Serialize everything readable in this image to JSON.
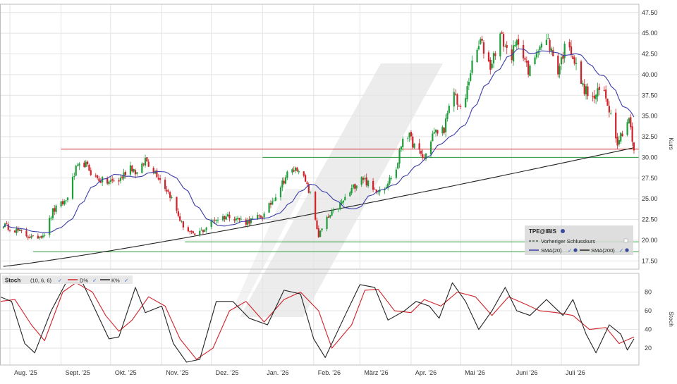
{
  "chart_data": [
    {
      "type": "candlestick",
      "name": "price-panel",
      "title": "",
      "ylabel": "Kurs",
      "ylim": [
        16.5,
        48.5
      ],
      "yticks": [
        17.5,
        20.0,
        22.5,
        25.0,
        27.5,
        30.0,
        32.5,
        35.0,
        37.5,
        40.0,
        42.5,
        45.0,
        47.5
      ],
      "ytick_labels": [
        "17.50",
        "20.00",
        "22.50",
        "25.00",
        "27.50",
        "30.00",
        "32.50",
        "35.00",
        "37.50",
        "40.00",
        "42.50",
        "45.00",
        "47.50"
      ],
      "grid": true,
      "legend": {
        "placement": "bottom-right",
        "title": "TPE@IBIS",
        "entries": [
          "Vorheriger Schlusskurs",
          "SMA(20)",
          "SMA(200)"
        ]
      },
      "colors": {
        "up": "#1e9e3a",
        "down": "#d0222a",
        "sma20": "#3c3ca8",
        "sma200": "#222222",
        "red_line": "#d0222a",
        "green_line": "#2a9a3a"
      },
      "horizontal_lines": [
        {
          "value": 31.0,
          "color": "#d0222a",
          "from": "2025-09-01"
        },
        {
          "value": 30.0,
          "color": "#2a9a3a",
          "from": "2026-01-01"
        },
        {
          "value": 19.8,
          "color": "#2a9a3a",
          "from": "2025-11-15"
        },
        {
          "value": 18.6,
          "color": "#2a9a3a",
          "from": "2025-08-15"
        }
      ],
      "price_path": [
        [
          "2025-07-26",
          22.0
        ],
        [
          "2025-08-05",
          21.2
        ],
        [
          "2025-08-15",
          20.2
        ],
        [
          "2025-08-22",
          20.8
        ],
        [
          "2025-08-27",
          23.5
        ],
        [
          "2025-09-04",
          24.8
        ],
        [
          "2025-09-10",
          28.5
        ],
        [
          "2025-09-15",
          29.3
        ],
        [
          "2025-09-22",
          27.5
        ],
        [
          "2025-09-28",
          27.0
        ],
        [
          "2025-10-06",
          27.2
        ],
        [
          "2025-10-13",
          29.0
        ],
        [
          "2025-10-18",
          27.8
        ],
        [
          "2025-10-22",
          29.8
        ],
        [
          "2025-10-29",
          28.0
        ],
        [
          "2025-11-06",
          25.5
        ],
        [
          "2025-11-13",
          22.0
        ],
        [
          "2025-11-20",
          20.5
        ],
        [
          "2025-11-26",
          21.2
        ],
        [
          "2025-12-03",
          22.5
        ],
        [
          "2025-12-12",
          23.0
        ],
        [
          "2025-12-22",
          22.2
        ],
        [
          "2026-01-02",
          23.0
        ],
        [
          "2026-01-09",
          25.5
        ],
        [
          "2026-01-16",
          28.0
        ],
        [
          "2026-01-23",
          28.8
        ],
        [
          "2026-01-30",
          25.5
        ],
        [
          "2026-02-04",
          20.5
        ],
        [
          "2026-02-09",
          22.5
        ],
        [
          "2026-02-16",
          24.0
        ],
        [
          "2026-02-23",
          25.8
        ],
        [
          "2026-03-02",
          27.8
        ],
        [
          "2026-03-09",
          26.0
        ],
        [
          "2026-03-16",
          26.5
        ],
        [
          "2026-03-23",
          28.5
        ],
        [
          "2026-03-28",
          33.5
        ],
        [
          "2026-04-04",
          31.0
        ],
        [
          "2026-04-09",
          29.8
        ],
        [
          "2026-04-14",
          32.8
        ],
        [
          "2026-04-21",
          33.5
        ],
        [
          "2026-04-27",
          38.0
        ],
        [
          "2026-05-02",
          35.0
        ],
        [
          "2026-05-07",
          40.5
        ],
        [
          "2026-05-13",
          44.0
        ],
        [
          "2026-05-19",
          41.0
        ],
        [
          "2026-05-25",
          44.8
        ],
        [
          "2026-05-31",
          42.0
        ],
        [
          "2026-06-06",
          44.5
        ],
        [
          "2026-06-11",
          40.0
        ],
        [
          "2026-06-17",
          43.5
        ],
        [
          "2026-06-23",
          44.0
        ],
        [
          "2026-06-29",
          40.5
        ],
        [
          "2026-07-05",
          44.5
        ],
        [
          "2026-07-09",
          41.5
        ],
        [
          "2026-07-14",
          38.5
        ],
        [
          "2026-07-20",
          37.0
        ],
        [
          "2026-07-26",
          38.5
        ],
        [
          "2026-07-30",
          36.0
        ],
        [
          "2026-08-04",
          32.0
        ],
        [
          "2026-08-08",
          33.5
        ],
        [
          "2026-08-11",
          34.8
        ],
        [
          "2026-08-14",
          30.5
        ]
      ]
    },
    {
      "type": "line",
      "name": "stoch-panel",
      "title": "Stoch",
      "params": "(10, 6, 6)",
      "ylabel": "Stoch",
      "ylim": [
        2,
        100
      ],
      "yticks": [
        20,
        40,
        60,
        80
      ],
      "ytick_labels": [
        "20",
        "40",
        "60",
        "80"
      ],
      "grid": true,
      "legend": {
        "placement": "top-left"
      },
      "series": [
        {
          "name": "D%",
          "color": "#d0222a",
          "points": [
            [
              "2025-07-26",
              70
            ],
            [
              "2025-08-04",
              72
            ],
            [
              "2025-08-14",
              45
            ],
            [
              "2025-08-22",
              28
            ],
            [
              "2025-09-02",
              80
            ],
            [
              "2025-09-10",
              90
            ],
            [
              "2025-09-20",
              80
            ],
            [
              "2025-09-28",
              55
            ],
            [
              "2025-10-06",
              38
            ],
            [
              "2025-10-14",
              50
            ],
            [
              "2025-10-24",
              75
            ],
            [
              "2025-11-03",
              65
            ],
            [
              "2025-11-12",
              30
            ],
            [
              "2025-11-22",
              8
            ],
            [
              "2025-12-02",
              20
            ],
            [
              "2025-12-12",
              60
            ],
            [
              "2025-12-22",
              70
            ],
            [
              "2026-01-02",
              48
            ],
            [
              "2026-01-14",
              72
            ],
            [
              "2026-01-24",
              80
            ],
            [
              "2026-02-04",
              60
            ],
            [
              "2026-02-12",
              20
            ],
            [
              "2026-02-24",
              45
            ],
            [
              "2026-03-04",
              82
            ],
            [
              "2026-03-12",
              83
            ],
            [
              "2026-03-22",
              60
            ],
            [
              "2026-04-01",
              58
            ],
            [
              "2026-04-09",
              72
            ],
            [
              "2026-04-19",
              65
            ],
            [
              "2026-04-29",
              80
            ],
            [
              "2026-05-10",
              75
            ],
            [
              "2026-05-20",
              55
            ],
            [
              "2026-05-30",
              75
            ],
            [
              "2026-06-08",
              68
            ],
            [
              "2026-06-18",
              60
            ],
            [
              "2026-06-28",
              58
            ],
            [
              "2026-07-08",
              55
            ],
            [
              "2026-07-18",
              40
            ],
            [
              "2026-07-28",
              42
            ],
            [
              "2026-08-05",
              25
            ],
            [
              "2026-08-14",
              32
            ]
          ]
        },
        {
          "name": "K%",
          "color": "#222222",
          "points": [
            [
              "2025-07-26",
              75
            ],
            [
              "2025-08-02",
              70
            ],
            [
              "2025-08-10",
              25
            ],
            [
              "2025-08-16",
              15
            ],
            [
              "2025-08-26",
              60
            ],
            [
              "2025-09-04",
              90
            ],
            [
              "2025-09-14",
              90
            ],
            [
              "2025-09-22",
              60
            ],
            [
              "2025-09-30",
              30
            ],
            [
              "2025-10-06",
              32
            ],
            [
              "2025-10-16",
              85
            ],
            [
              "2025-10-22",
              58
            ],
            [
              "2025-11-01",
              65
            ],
            [
              "2025-11-08",
              25
            ],
            [
              "2025-11-16",
              5
            ],
            [
              "2025-11-24",
              8
            ],
            [
              "2025-12-04",
              70
            ],
            [
              "2025-12-14",
              70
            ],
            [
              "2025-12-24",
              52
            ],
            [
              "2026-01-04",
              45
            ],
            [
              "2026-01-14",
              82
            ],
            [
              "2026-01-24",
              78
            ],
            [
              "2026-02-01",
              30
            ],
            [
              "2026-02-08",
              10
            ],
            [
              "2026-02-20",
              55
            ],
            [
              "2026-03-01",
              88
            ],
            [
              "2026-03-10",
              85
            ],
            [
              "2026-03-18",
              50
            ],
            [
              "2026-03-28",
              60
            ],
            [
              "2026-04-04",
              70
            ],
            [
              "2026-04-12",
              65
            ],
            [
              "2026-04-18",
              52
            ],
            [
              "2026-04-26",
              90
            ],
            [
              "2026-05-04",
              70
            ],
            [
              "2026-05-12",
              40
            ],
            [
              "2026-05-20",
              60
            ],
            [
              "2026-05-28",
              85
            ],
            [
              "2026-06-04",
              60
            ],
            [
              "2026-06-12",
              55
            ],
            [
              "2026-06-22",
              72
            ],
            [
              "2026-07-02",
              55
            ],
            [
              "2026-07-08",
              72
            ],
            [
              "2026-07-16",
              35
            ],
            [
              "2026-07-22",
              15
            ],
            [
              "2026-07-30",
              45
            ],
            [
              "2026-08-06",
              35
            ],
            [
              "2026-08-10",
              18
            ],
            [
              "2026-08-14",
              30
            ]
          ]
        }
      ]
    }
  ],
  "x_axis": {
    "labels": [
      {
        "date": "2025-08-01",
        "label": "Aug. '25"
      },
      {
        "date": "2025-09-01",
        "label": "Sept. '25"
      },
      {
        "date": "2025-10-01",
        "label": "Okt. '25"
      },
      {
        "date": "2025-11-01",
        "label": "Nov. '25"
      },
      {
        "date": "2025-12-01",
        "label": "Dez. '25"
      },
      {
        "date": "2026-01-01",
        "label": "Jan. '26"
      },
      {
        "date": "2026-02-01",
        "label": "Feb. '26"
      },
      {
        "date": "2026-03-01",
        "label": "März '26"
      },
      {
        "date": "2026-04-01",
        "label": "Apr. '26"
      },
      {
        "date": "2026-05-01",
        "label": "Mai '26"
      },
      {
        "date": "2026-06-01",
        "label": "Juni '26"
      },
      {
        "date": "2026-07-01",
        "label": "Juli '26"
      }
    ],
    "range": [
      "2025-07-26",
      "2026-08-17"
    ]
  }
}
